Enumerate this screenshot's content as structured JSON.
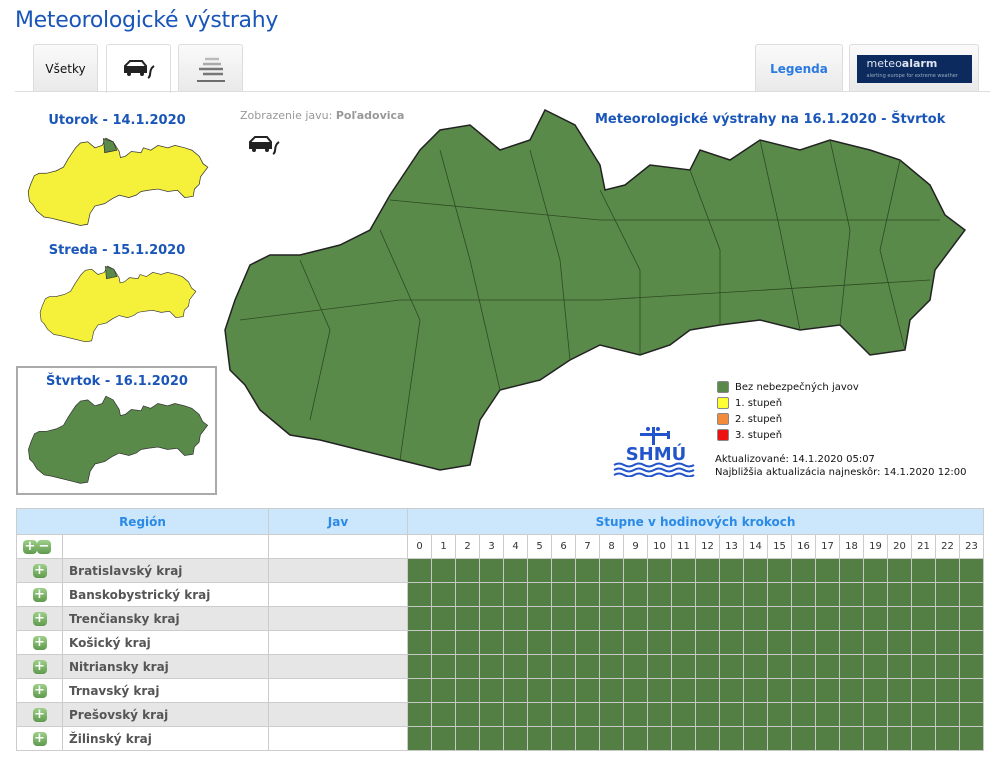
{
  "header": {
    "title": "Meteorologické výstrahy"
  },
  "tabs": [
    {
      "label": "Všetky"
    },
    {
      "icon": "car-skid-icon"
    },
    {
      "icon": "fog-icon"
    }
  ],
  "right_tabs": {
    "legend": "Legenda",
    "meteoalarm": "meteoalarm",
    "meteoalarm_bold": "alarm",
    "meteoalarm_sub": "alerting europe for extreme weather"
  },
  "days": [
    {
      "label": "Utorok - 14.1.2020",
      "level": 1
    },
    {
      "label": "Streda - 15.1.2020",
      "level": 1
    },
    {
      "label": "Štvrtok - 16.1.2020",
      "level": 0,
      "selected": true
    }
  ],
  "phenomenon": {
    "label": "Zobrazenie javu:",
    "value": "Poľadovica",
    "icon": "car-skid-icon"
  },
  "map_title": "Meteorologické výstrahy na 16.1.2020 - Štvrtok",
  "legend": [
    {
      "label": "Bez nebezpečných javov",
      "color": "#5a8a4a"
    },
    {
      "label": "1. stupeň",
      "color": "#ffff33"
    },
    {
      "label": "2. stupeň",
      "color": "#f28c3a"
    },
    {
      "label": "3. stupeň",
      "color": "#ee1111"
    }
  ],
  "logo": "SHMÚ",
  "updated": "Aktualizované: 14.1.2020 05:07",
  "next_update": "Najbližšia aktualizácia najneskôr: 14.1.2020 12:00",
  "table": {
    "col_region": "Región",
    "col_jav": "Jav",
    "col_hours": "Stupne v hodinových krokoch",
    "hours": [
      "0",
      "1",
      "2",
      "3",
      "4",
      "5",
      "6",
      "7",
      "8",
      "9",
      "10",
      "11",
      "12",
      "13",
      "14",
      "15",
      "16",
      "17",
      "18",
      "19",
      "20",
      "21",
      "22",
      "23"
    ],
    "regions": [
      "Bratislavský kraj",
      "Banskobystrický kraj",
      "Trenčiansky kraj",
      "Košický kraj",
      "Nitriansky kraj",
      "Trnavský kraj",
      "Prešovský kraj",
      "Žilinský kraj"
    ],
    "level_all": 0
  },
  "colors": {
    "green": "#537e44",
    "yellow": "#f5f03a",
    "accent": "#1a56b8"
  }
}
